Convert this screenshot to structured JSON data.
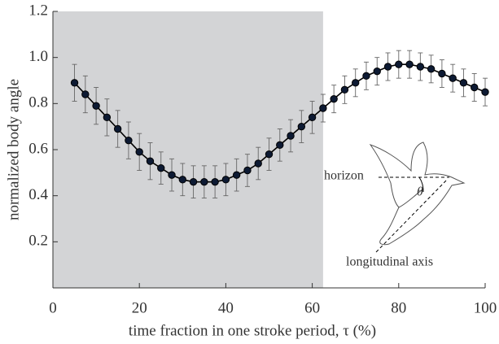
{
  "chart_data": {
    "type": "line",
    "xlabel": "time fraction in one stroke period, τ (%)",
    "ylabel": "normalized body angle",
    "x": [
      5,
      7.5,
      10,
      12.5,
      15,
      17.5,
      20,
      22.5,
      25,
      27.5,
      30,
      32.5,
      35,
      37.5,
      40,
      42.5,
      45,
      47.5,
      50,
      52.5,
      55,
      57.5,
      60,
      62.5,
      65,
      67.5,
      70,
      72.5,
      75,
      77.5,
      80,
      82.5,
      85,
      87.5,
      90,
      92.5,
      95,
      97.5,
      100
    ],
    "series": [
      {
        "color": "#0d1a33",
        "values": [
          0.89,
          0.84,
          0.79,
          0.74,
          0.69,
          0.64,
          0.59,
          0.55,
          0.52,
          0.49,
          0.47,
          0.46,
          0.46,
          0.46,
          0.47,
          0.49,
          0.51,
          0.54,
          0.58,
          0.62,
          0.66,
          0.7,
          0.74,
          0.78,
          0.82,
          0.86,
          0.89,
          0.92,
          0.94,
          0.96,
          0.97,
          0.97,
          0.96,
          0.95,
          0.93,
          0.91,
          0.89,
          0.87,
          0.85
        ],
        "errors": [
          0.08,
          0.08,
          0.08,
          0.08,
          0.08,
          0.08,
          0.08,
          0.08,
          0.07,
          0.07,
          0.07,
          0.07,
          0.07,
          0.07,
          0.07,
          0.07,
          0.07,
          0.07,
          0.07,
          0.07,
          0.07,
          0.07,
          0.07,
          0.06,
          0.06,
          0.06,
          0.06,
          0.06,
          0.06,
          0.06,
          0.06,
          0.06,
          0.06,
          0.06,
          0.06,
          0.06,
          0.06,
          0.06,
          0.06
        ]
      }
    ],
    "shaded_region": [
      0,
      62.5
    ],
    "xlim": [
      0,
      100
    ],
    "xticks": [
      0,
      20,
      40,
      60,
      80,
      100
    ],
    "ylim": [
      0,
      1.2
    ],
    "yticks": [
      0.2,
      0.4,
      0.6,
      0.8,
      {
        "value": 1,
        "label": "1.0"
      },
      1.2
    ],
    "annotations": {
      "horizon": "horizon",
      "angle": "θ",
      "axis": "longitudinal axis"
    }
  }
}
